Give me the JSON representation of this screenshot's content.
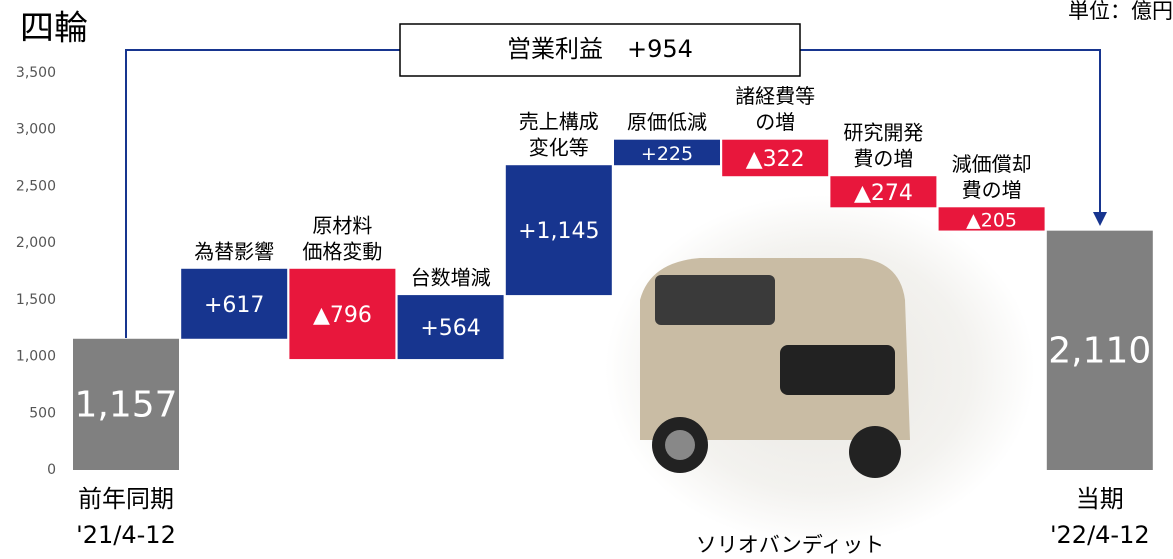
{
  "chart_data": {
    "type": "waterfall",
    "title": "四輪",
    "unit": "単位：億円",
    "annotation": "営業利益　+954",
    "caption": "ソリオバンディット",
    "categories": [
      [
        "前年同期",
        "'21/4-12"
      ],
      [
        "為替影響"
      ],
      [
        "原材料",
        "価格変動"
      ],
      [
        "台数増減"
      ],
      [
        "売上構成",
        "変化等"
      ],
      [
        "原価低減"
      ],
      [
        "諸経費等",
        "の増"
      ],
      [
        "研究開発",
        "費の増"
      ],
      [
        "減価償却",
        "費の増"
      ],
      [
        "当期",
        "'22/4-12"
      ]
    ],
    "values": [
      1157,
      617,
      -796,
      564,
      1145,
      225,
      -322,
      -274,
      -205,
      2110
    ],
    "value_labels": [
      "1,157",
      "+617",
      "▲796",
      "+564",
      "+1,145",
      "+225",
      "▲322",
      "▲274",
      "▲205",
      "2,110"
    ],
    "colors": {
      "total": "#808080",
      "increase": "#17358f",
      "decrease": "#e8173c"
    },
    "ylim": [
      0,
      3500
    ],
    "yticks": [
      0,
      500,
      {
        "value": 1000,
        "label": "1,000"
      },
      {
        "value": 1500,
        "label": "1,500"
      },
      {
        "value": 2000,
        "label": "2,000"
      },
      {
        "value": 2500,
        "label": "2,500"
      },
      {
        "value": 3000,
        "label": "3,000"
      },
      {
        "value": 3500,
        "label": "3,500"
      }
    ]
  }
}
